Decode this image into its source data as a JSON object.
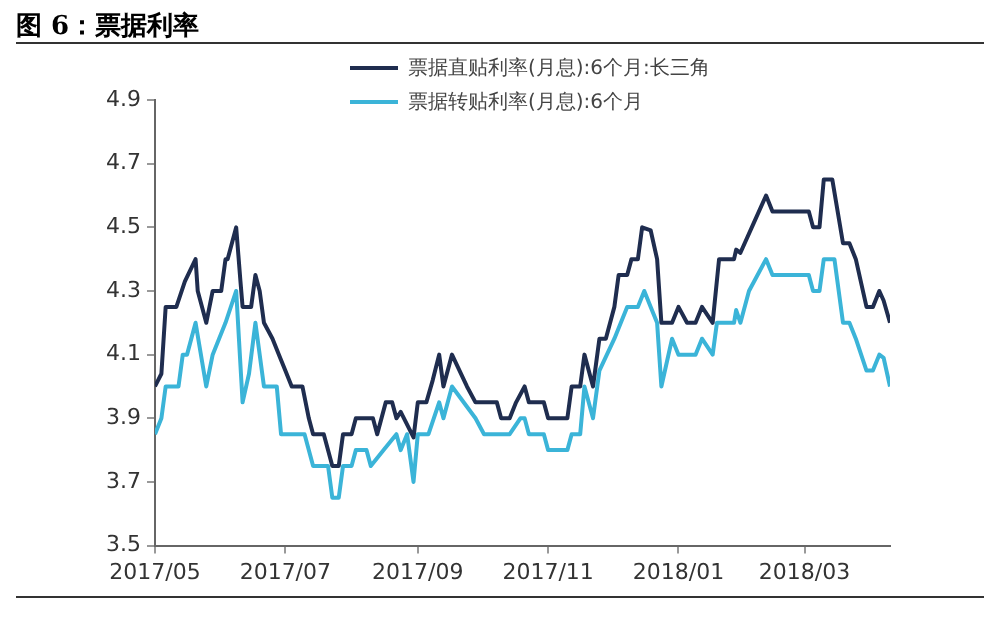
{
  "chart_data": {
    "type": "line",
    "title": "图 6：票据利率",
    "xlim": [
      "2017-05-01",
      "2018-04-10"
    ],
    "xticks": [
      {
        "value": "2017-05-01",
        "label": "2017/05"
      },
      {
        "value": "2017-07-01",
        "label": "2017/07"
      },
      {
        "value": "2017-09-01",
        "label": "2017/09"
      },
      {
        "value": "2017-11-01",
        "label": "2017/11"
      },
      {
        "value": "2018-01-01",
        "label": "2018/01"
      },
      {
        "value": "2018-03-01",
        "label": "2018/03"
      }
    ],
    "ylim": [
      3.5,
      4.9
    ],
    "yticks": [
      3.5,
      3.7,
      3.9,
      4.1,
      4.3,
      4.5,
      4.7,
      4.9
    ],
    "grid": false,
    "legend": "top",
    "marker": "none",
    "line_style": "solid",
    "series": [
      {
        "name": "票据直贴利率(月息):6个月:长三角",
        "color": "#1f2d4f",
        "x": [
          "2017-05-01",
          "2017-05-04",
          "2017-05-06",
          "2017-05-11",
          "2017-05-15",
          "2017-05-20",
          "2017-05-21",
          "2017-05-25",
          "2017-05-28",
          "2017-06-01",
          "2017-06-03",
          "2017-06-04",
          "2017-06-08",
          "2017-06-10",
          "2017-06-11",
          "2017-06-15",
          "2017-06-17",
          "2017-06-19",
          "2017-06-21",
          "2017-06-25",
          "2017-06-28",
          "2017-07-01",
          "2017-07-04",
          "2017-07-09",
          "2017-07-12",
          "2017-07-14",
          "2017-07-19",
          "2017-07-23",
          "2017-07-26",
          "2017-07-28",
          "2017-08-01",
          "2017-08-03",
          "2017-08-11",
          "2017-08-13",
          "2017-08-17",
          "2017-08-20",
          "2017-08-22",
          "2017-08-24",
          "2017-08-30",
          "2017-09-01",
          "2017-09-05",
          "2017-09-08",
          "2017-09-11",
          "2017-09-13",
          "2017-09-17",
          "2017-09-24",
          "2017-09-28",
          "2017-10-08",
          "2017-10-10",
          "2017-10-14",
          "2017-10-17",
          "2017-10-21",
          "2017-10-23",
          "2017-10-30",
          "2017-11-01",
          "2017-11-10",
          "2017-11-12",
          "2017-11-16",
          "2017-11-18",
          "2017-11-22",
          "2017-11-25",
          "2017-11-28",
          "2017-12-02",
          "2017-12-04",
          "2017-12-08",
          "2017-12-10",
          "2017-12-13",
          "2017-12-15",
          "2017-12-19",
          "2017-12-22",
          "2017-12-24",
          "2017-12-29",
          "2018-01-01",
          "2018-01-05",
          "2018-01-09",
          "2018-01-12",
          "2018-01-17",
          "2018-01-20",
          "2018-01-27",
          "2018-01-28",
          "2018-01-30",
          "2018-02-05",
          "2018-02-11",
          "2018-02-14",
          "2018-03-03",
          "2018-03-05",
          "2018-03-08",
          "2018-03-10",
          "2018-03-14",
          "2018-03-19",
          "2018-03-22",
          "2018-03-25",
          "2018-03-30",
          "2018-04-02",
          "2018-04-05",
          "2018-04-07",
          "2018-04-10"
        ],
        "values": [
          4.0,
          4.04,
          4.25,
          4.25,
          4.33,
          4.4,
          4.3,
          4.2,
          4.3,
          4.3,
          4.4,
          4.4,
          4.5,
          4.33,
          4.25,
          4.25,
          4.35,
          4.3,
          4.2,
          4.15,
          4.1,
          4.05,
          4.0,
          4.0,
          3.9,
          3.85,
          3.85,
          3.75,
          3.75,
          3.85,
          3.85,
          3.9,
          3.9,
          3.85,
          3.95,
          3.95,
          3.9,
          3.92,
          3.84,
          3.95,
          3.95,
          4.02,
          4.1,
          4.0,
          4.1,
          4.0,
          3.95,
          3.95,
          3.9,
          3.9,
          3.95,
          4.0,
          3.95,
          3.95,
          3.9,
          3.9,
          4.0,
          4.0,
          4.1,
          4.0,
          4.15,
          4.15,
          4.25,
          4.35,
          4.35,
          4.4,
          4.4,
          4.5,
          4.49,
          4.4,
          4.2,
          4.2,
          4.25,
          4.2,
          4.2,
          4.25,
          4.2,
          4.4,
          4.4,
          4.43,
          4.42,
          4.51,
          4.6,
          4.55,
          4.55,
          4.5,
          4.5,
          4.65,
          4.65,
          4.45,
          4.45,
          4.4,
          4.25,
          4.25,
          4.3,
          4.27,
          4.2
        ]
      },
      {
        "name": "票据转贴利率(月息):6个月",
        "color": "#3bb4d8",
        "x": [
          "2017-05-01",
          "2017-05-04",
          "2017-05-06",
          "2017-05-12",
          "2017-05-14",
          "2017-05-16",
          "2017-05-20",
          "2017-05-25",
          "2017-05-28",
          "2017-05-31",
          "2017-06-03",
          "2017-06-08",
          "2017-06-11",
          "2017-06-14",
          "2017-06-17",
          "2017-06-21",
          "2017-06-27",
          "2017-06-29",
          "2017-07-10",
          "2017-07-14",
          "2017-07-21",
          "2017-07-23",
          "2017-07-26",
          "2017-07-28",
          "2017-08-01",
          "2017-08-03",
          "2017-08-08",
          "2017-08-10",
          "2017-08-16",
          "2017-08-22",
          "2017-08-24",
          "2017-08-27",
          "2017-08-30",
          "2017-09-01",
          "2017-09-06",
          "2017-09-11",
          "2017-09-13",
          "2017-09-17",
          "2017-09-28",
          "2017-10-02",
          "2017-10-08",
          "2017-10-14",
          "2017-10-19",
          "2017-10-21",
          "2017-10-23",
          "2017-10-30",
          "2017-11-01",
          "2017-11-10",
          "2017-11-12",
          "2017-11-16",
          "2017-11-18",
          "2017-11-22",
          "2017-11-25",
          "2017-12-02",
          "2017-12-08",
          "2017-12-13",
          "2017-12-16",
          "2017-12-19",
          "2017-12-22",
          "2017-12-24",
          "2017-12-29",
          "2018-01-01",
          "2018-01-05",
          "2018-01-09",
          "2018-01-12",
          "2018-01-17",
          "2018-01-19",
          "2018-01-27",
          "2018-01-28",
          "2018-01-30",
          "2018-02-03",
          "2018-02-11",
          "2018-02-14",
          "2018-03-03",
          "2018-03-05",
          "2018-03-08",
          "2018-03-10",
          "2018-03-15",
          "2018-03-19",
          "2018-03-22",
          "2018-03-25",
          "2018-03-30",
          "2018-04-02",
          "2018-04-05",
          "2018-04-07",
          "2018-04-10"
        ],
        "values": [
          3.85,
          3.9,
          4.0,
          4.0,
          4.1,
          4.1,
          4.2,
          4.0,
          4.1,
          4.15,
          4.2,
          4.3,
          3.95,
          4.04,
          4.2,
          4.0,
          4.0,
          3.85,
          3.85,
          3.75,
          3.75,
          3.65,
          3.65,
          3.75,
          3.75,
          3.8,
          3.8,
          3.75,
          3.8,
          3.85,
          3.8,
          3.85,
          3.7,
          3.85,
          3.85,
          3.95,
          3.9,
          4.0,
          3.9,
          3.85,
          3.85,
          3.85,
          3.9,
          3.9,
          3.85,
          3.85,
          3.8,
          3.8,
          3.85,
          3.85,
          4.0,
          3.9,
          4.05,
          4.15,
          4.25,
          4.25,
          4.3,
          4.25,
          4.2,
          4.0,
          4.15,
          4.1,
          4.1,
          4.1,
          4.15,
          4.1,
          4.2,
          4.2,
          4.24,
          4.2,
          4.3,
          4.4,
          4.35,
          4.35,
          4.3,
          4.3,
          4.4,
          4.4,
          4.2,
          4.2,
          4.15,
          4.05,
          4.05,
          4.1,
          4.09,
          4.0
        ]
      }
    ]
  }
}
